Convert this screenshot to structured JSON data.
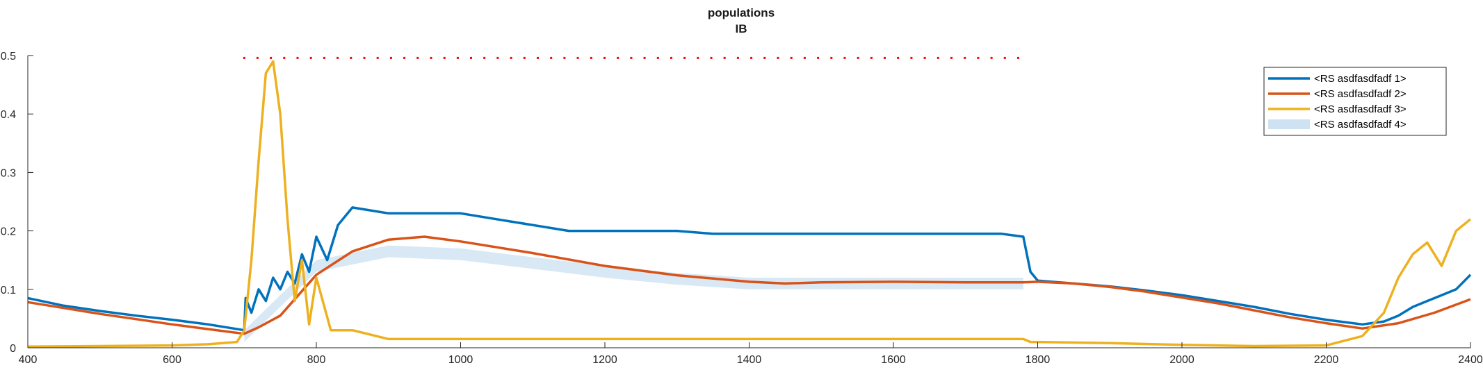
{
  "chart_data": {
    "type": "line",
    "title": "populations",
    "subtitle": "IB",
    "xlabel": "",
    "ylabel": "",
    "xlim": [
      400,
      2400
    ],
    "ylim": [
      0,
      0.5
    ],
    "xticks": [
      "400",
      "600",
      "800",
      "1000",
      "1200",
      "1400",
      "1600",
      "1800",
      "2000",
      "2200",
      "2400"
    ],
    "yticks": [
      "0",
      "0.1",
      "0.2",
      "0.3",
      "0.4",
      "0.5"
    ],
    "grid": false,
    "legend_position": "top-right",
    "series": [
      {
        "name": "<RS asdfasdfadf 1>",
        "color": "#0072BD",
        "x": [
          400,
          450,
          500,
          550,
          600,
          650,
          700,
          702,
          710,
          720,
          730,
          740,
          750,
          760,
          770,
          780,
          790,
          800,
          815,
          830,
          850,
          900,
          950,
          1000,
          1050,
          1100,
          1150,
          1200,
          1250,
          1300,
          1350,
          1400,
          1450,
          1500,
          1550,
          1600,
          1650,
          1700,
          1750,
          1780,
          1790,
          1800,
          1850,
          1900,
          1950,
          2000,
          2050,
          2100,
          2150,
          2200,
          2250,
          2280,
          2300,
          2320,
          2340,
          2360,
          2380,
          2400
        ],
        "values": [
          0.085,
          0.072,
          0.063,
          0.055,
          0.048,
          0.04,
          0.03,
          0.085,
          0.06,
          0.1,
          0.08,
          0.12,
          0.1,
          0.13,
          0.11,
          0.16,
          0.13,
          0.19,
          0.15,
          0.21,
          0.24,
          0.23,
          0.23,
          0.23,
          0.22,
          0.21,
          0.2,
          0.2,
          0.2,
          0.2,
          0.195,
          0.195,
          0.195,
          0.195,
          0.195,
          0.195,
          0.195,
          0.195,
          0.195,
          0.19,
          0.13,
          0.115,
          0.11,
          0.105,
          0.098,
          0.09,
          0.08,
          0.07,
          0.058,
          0.048,
          0.04,
          0.045,
          0.055,
          0.07,
          0.08,
          0.09,
          0.1,
          0.125
        ]
      },
      {
        "name": "<RS asdfasdfadf 2>",
        "color": "#D95319",
        "x": [
          400,
          450,
          500,
          550,
          600,
          650,
          700,
          720,
          750,
          800,
          850,
          900,
          950,
          1000,
          1050,
          1100,
          1200,
          1300,
          1400,
          1450,
          1500,
          1600,
          1700,
          1780,
          1800,
          1850,
          1900,
          1950,
          2000,
          2050,
          2100,
          2150,
          2200,
          2250,
          2300,
          2350,
          2400
        ],
        "values": [
          0.078,
          0.068,
          0.058,
          0.049,
          0.04,
          0.032,
          0.024,
          0.035,
          0.055,
          0.125,
          0.165,
          0.185,
          0.19,
          0.182,
          0.172,
          0.162,
          0.14,
          0.124,
          0.113,
          0.11,
          0.112,
          0.113,
          0.112,
          0.112,
          0.113,
          0.11,
          0.104,
          0.096,
          0.086,
          0.076,
          0.064,
          0.052,
          0.042,
          0.033,
          0.042,
          0.06,
          0.083
        ]
      },
      {
        "name": "<RS asdfasdfadf 3>",
        "color": "#EDB120",
        "x": [
          400,
          500,
          600,
          650,
          690,
          700,
          710,
          720,
          730,
          740,
          750,
          760,
          770,
          780,
          790,
          800,
          820,
          850,
          900,
          1000,
          1100,
          1200,
          1300,
          1400,
          1500,
          1600,
          1700,
          1780,
          1790,
          1800,
          1900,
          2000,
          2100,
          2200,
          2250,
          2280,
          2300,
          2320,
          2340,
          2360,
          2380,
          2400
        ],
        "values": [
          0.002,
          0.003,
          0.004,
          0.006,
          0.01,
          0.03,
          0.15,
          0.32,
          0.47,
          0.49,
          0.4,
          0.22,
          0.08,
          0.15,
          0.04,
          0.12,
          0.03,
          0.03,
          0.015,
          0.015,
          0.015,
          0.015,
          0.015,
          0.015,
          0.015,
          0.015,
          0.015,
          0.015,
          0.01,
          0.01,
          0.008,
          0.005,
          0.003,
          0.004,
          0.02,
          0.06,
          0.12,
          0.16,
          0.18,
          0.14,
          0.2,
          0.22
        ]
      },
      {
        "name": "<RS asdfasdfadf 4>",
        "color": "#CFE2F3",
        "type": "area",
        "x": [
          700,
          800,
          900,
          1000,
          1100,
          1200,
          1300,
          1400,
          1500,
          1600,
          1700,
          1780
        ],
        "values": [
          0.03,
          0.15,
          0.175,
          0.17,
          0.155,
          0.14,
          0.128,
          0.12,
          0.12,
          0.12,
          0.12,
          0.12
        ]
      }
    ],
    "red_dots": {
      "color": "#FF0000",
      "y": 0.496,
      "x_start": 700,
      "x_end": 1790,
      "step": 18.5
    }
  }
}
